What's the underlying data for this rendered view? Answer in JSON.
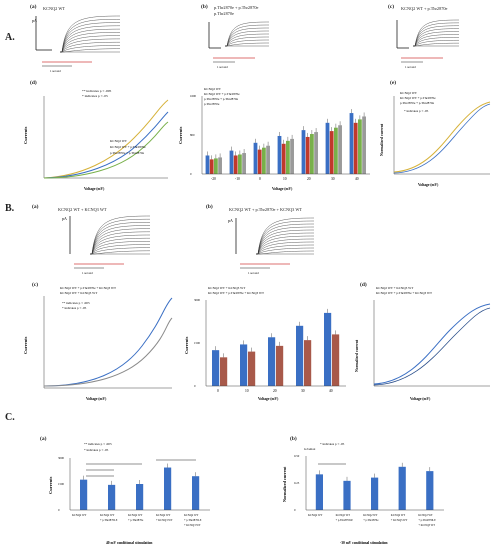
{
  "sections": {
    "A": "A.",
    "B": "B.",
    "C": "C."
  },
  "panels": {
    "A_a": {
      "label": "(a)",
      "title": "KCNQ2 WT",
      "unit": "pA",
      "scale_t": "1 second"
    },
    "A_b": {
      "label": "(b)",
      "title_1": "p.Thr2870e + p.Thr2870e",
      "title_2": "p.Thr2870e",
      "scale_t": "1 second"
    },
    "A_c": {
      "label": "(c)",
      "title": "KCNQ2 WT + p.Thr2870e",
      "scale_t": "1 second"
    },
    "A_d": {
      "label": "(d)",
      "note_1": "** indicates p < .005",
      "note_2": "* indicates p < .05",
      "legend": [
        "KCNQ2 WT",
        "KCNQ2 WT + p.Thr2870e",
        "p.Thr2870e + p.Thr2870e"
      ],
      "ylabel": "Currents",
      "yunit": "(pA)",
      "xlabel": "Voltage (mV)"
    },
    "A_bar": {
      "legend": [
        "KCNQ2 WT",
        "KCNQ2 WT + p.Thr2870e",
        "p.Thr2870e + p.Thr2870e",
        "p.Thr2870e"
      ],
      "ylabel": "Currents",
      "yunit": "(pA)",
      "xlabel": "Voltage (mV)"
    },
    "A_e": {
      "label": "(e)",
      "note": "* indicates p < .05",
      "legend": [
        "KCNQ2 WT",
        "KCNQ2 WT + p.Thr2870e",
        "p.Thr2870e + p.Thr2870e"
      ],
      "ylabel": "Normalized current",
      "yunit": "(G/Gmax)",
      "xlabel": "Voltage (mV)"
    },
    "B_a": {
      "label": "(a)",
      "title": "KCNQ2 WT + KCNQ3 WT",
      "unit": "pA",
      "scale_t": "1 second"
    },
    "B_b": {
      "label": "(b)",
      "title": "KCNQ2 WT + p.Thr2870e + KCNQ3 WT",
      "unit": "pA",
      "scale_t": "1 second"
    },
    "B_c": {
      "label": "(c)",
      "legend": [
        "KCNQ2 WT + p.Thr2870e + KCNQ3 WT",
        "KCNQ2 WT + KCNQ3 WT"
      ],
      "note_1": "** indicates p < .005",
      "note_2": "* indicates p < .05",
      "ylabel": "Currents",
      "yunit": "(pA)",
      "xlabel": "Voltage (mV)"
    },
    "B_bar": {
      "legend": [
        "KCNQ2 WT + KCNQ3 WT",
        "KCNQ2 WT + p.Thr2870e + KCNQ3 WT"
      ],
      "ylabel": "Currents",
      "yunit": "(pA)",
      "xlabel": "Voltage (mV)"
    },
    "B_d": {
      "label": "(d)",
      "legend": [
        "KCNQ2 WT + KCNQ3 WT",
        "KCNQ2 WT + p.Thr2870e + KCNQ3 WT"
      ],
      "ylabel": "Normalized current",
      "yunit": "(G/Gmax)",
      "xlabel": "Voltage (mV)"
    },
    "C_a": {
      "label": "(a)",
      "note_1": "** indicates p < .005",
      "note_2": "* indicates p < .05",
      "ylabel": "Currents",
      "yunit": "(pA)",
      "footer": "40 mV conditional stimulation",
      "categories": [
        "KCNQ2 WT",
        "KCNQ2 WT + p.Thr2870LE",
        "KCNQ2 WT + p.Thr2870e",
        "KCNQ2 WT + KCNQ3 WT",
        "KCNQ2 WT + p.Thr2870LE + KCNQ3 WT"
      ]
    },
    "C_b": {
      "label": "(b)",
      "note": "* indicates p < .05",
      "ylabel": "Normalized current",
      "yunit": "G/Gmax",
      "footer": "-30 mV conditional stimulation",
      "categories": [
        "KCNQ2 WT",
        "KCNQ2 WT + p.Thr2870LE",
        "KCNQ2 WT + p.Thr2870e",
        "KCNQ2 WT + KCNQ3 WT",
        "KCNQ2 WT + p.Thr2870LE + KCNQ3 WT"
      ]
    }
  },
  "colors": {
    "blue": "#3a6fc4",
    "orange": "#e0963a",
    "gray": "#9a9a9a",
    "green": "#78b04a",
    "red": "#c0392b",
    "brown": "#a8594a",
    "yellow": "#d6b23a"
  },
  "chart_data": [
    {
      "id": "A_bar",
      "type": "bar",
      "categories": [
        "-20",
        "-10",
        "0",
        "10",
        "20",
        "30",
        "40"
      ],
      "series": [
        {
          "name": "KCNQ2 WT",
          "values": [
            380,
            480,
            640,
            780,
            900,
            1050,
            1250
          ]
        },
        {
          "name": "KCNQ2 WT + p.Thr2870e",
          "values": [
            300,
            380,
            500,
            620,
            760,
            880,
            1050
          ]
        },
        {
          "name": "p.Thr2870e + p.Thr2870e",
          "values": [
            320,
            400,
            540,
            680,
            820,
            950,
            1120
          ]
        },
        {
          "name": "p.Thr2870e",
          "values": [
            340,
            430,
            580,
            720,
            860,
            1000,
            1180
          ]
        }
      ],
      "ylim": [
        0,
        1600
      ]
    },
    {
      "id": "B_bar",
      "type": "bar",
      "categories": [
        "0",
        "10",
        "20",
        "30",
        "40"
      ],
      "series": [
        {
          "name": "KCNQ2 WT + KCNQ3 WT",
          "values": [
            1250,
            1450,
            1700,
            2100,
            2550
          ]
        },
        {
          "name": "KCNQ2 WT + p.Thr2870e + KCNQ3 WT",
          "values": [
            1000,
            1200,
            1400,
            1600,
            1800
          ]
        }
      ],
      "ylim": [
        0,
        3000
      ]
    },
    {
      "id": "C_a",
      "type": "bar",
      "categories": [
        "1",
        "2",
        "3",
        "4",
        "5"
      ],
      "series": [
        {
          "values": [
            1750,
            1450,
            1500,
            2450,
            1950
          ]
        }
      ],
      "ylim": [
        0,
        3000
      ]
    },
    {
      "id": "C_b",
      "type": "bar",
      "categories": [
        "1",
        "2",
        "3",
        "4",
        "5"
      ],
      "series": [
        {
          "values": [
            0.33,
            0.27,
            0.3,
            0.4,
            0.36
          ]
        }
      ],
      "ylim": [
        0,
        0.5
      ]
    }
  ]
}
